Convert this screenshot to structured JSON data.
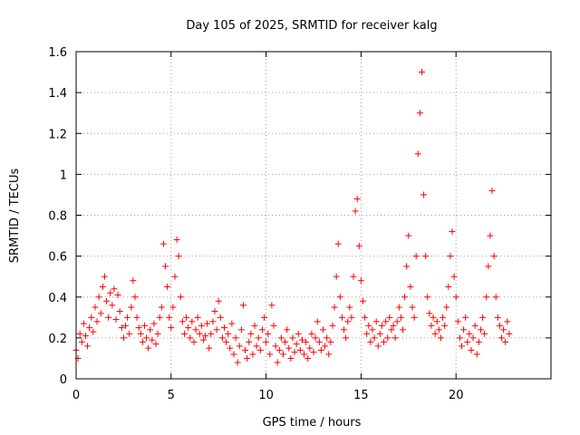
{
  "chart_data": {
    "type": "scatter",
    "title": "Day 105 of 2025, SRMTID for receiver kalg",
    "xlabel": "GPS time / hours",
    "ylabel": "SRMTID / TECUs",
    "xlim": [
      0,
      25
    ],
    "ylim": [
      0,
      1.6
    ],
    "xticks": [
      0,
      5,
      10,
      15,
      20
    ],
    "xtick_labels": [
      "0",
      "5",
      "10",
      "15",
      "20"
    ],
    "yticks": [
      0,
      0.2,
      0.4,
      0.6,
      0.8,
      1,
      1.2,
      1.4,
      1.6
    ],
    "ytick_labels": [
      "0",
      "0.2",
      "0.4",
      "0.6",
      "0.8",
      "1",
      "1.2",
      "1.4",
      "1.6"
    ],
    "grid": true,
    "marker": "+",
    "marker_color": "#ff0000",
    "series": [
      {
        "name": "SRMTID",
        "points": [
          [
            0.0,
            0.14
          ],
          [
            0.1,
            0.1
          ],
          [
            0.2,
            0.22
          ],
          [
            0.3,
            0.18
          ],
          [
            0.4,
            0.27
          ],
          [
            0.5,
            0.21
          ],
          [
            0.6,
            0.16
          ],
          [
            0.7,
            0.25
          ],
          [
            0.8,
            0.3
          ],
          [
            0.9,
            0.23
          ],
          [
            1.0,
            0.35
          ],
          [
            1.1,
            0.28
          ],
          [
            1.2,
            0.4
          ],
          [
            1.3,
            0.32
          ],
          [
            1.4,
            0.45
          ],
          [
            1.5,
            0.5
          ],
          [
            1.6,
            0.38
          ],
          [
            1.7,
            0.3
          ],
          [
            1.8,
            0.42
          ],
          [
            1.9,
            0.36
          ],
          [
            2.0,
            0.44
          ],
          [
            2.1,
            0.29
          ],
          [
            2.2,
            0.41
          ],
          [
            2.3,
            0.33
          ],
          [
            2.4,
            0.25
          ],
          [
            2.5,
            0.2
          ],
          [
            2.6,
            0.26
          ],
          [
            2.7,
            0.3
          ],
          [
            2.8,
            0.22
          ],
          [
            2.9,
            0.35
          ],
          [
            3.0,
            0.48
          ],
          [
            3.1,
            0.4
          ],
          [
            3.2,
            0.3
          ],
          [
            3.3,
            0.25
          ],
          [
            3.4,
            0.22
          ],
          [
            3.5,
            0.18
          ],
          [
            3.6,
            0.26
          ],
          [
            3.7,
            0.2
          ],
          [
            3.8,
            0.15
          ],
          [
            3.9,
            0.24
          ],
          [
            4.0,
            0.19
          ],
          [
            4.1,
            0.27
          ],
          [
            4.2,
            0.17
          ],
          [
            4.3,
            0.22
          ],
          [
            4.4,
            0.3
          ],
          [
            4.5,
            0.35
          ],
          [
            4.6,
            0.66
          ],
          [
            4.7,
            0.55
          ],
          [
            4.8,
            0.45
          ],
          [
            4.9,
            0.3
          ],
          [
            5.0,
            0.25
          ],
          [
            5.1,
            0.35
          ],
          [
            5.2,
            0.5
          ],
          [
            5.3,
            0.68
          ],
          [
            5.4,
            0.6
          ],
          [
            5.5,
            0.4
          ],
          [
            5.6,
            0.28
          ],
          [
            5.7,
            0.22
          ],
          [
            5.8,
            0.3
          ],
          [
            5.9,
            0.25
          ],
          [
            6.0,
            0.2
          ],
          [
            6.1,
            0.28
          ],
          [
            6.2,
            0.18
          ],
          [
            6.3,
            0.24
          ],
          [
            6.4,
            0.3
          ],
          [
            6.5,
            0.22
          ],
          [
            6.6,
            0.26
          ],
          [
            6.7,
            0.19
          ],
          [
            6.8,
            0.21
          ],
          [
            6.9,
            0.27
          ],
          [
            7.0,
            0.15
          ],
          [
            7.1,
            0.22
          ],
          [
            7.2,
            0.28
          ],
          [
            7.3,
            0.33
          ],
          [
            7.4,
            0.24
          ],
          [
            7.5,
            0.38
          ],
          [
            7.6,
            0.3
          ],
          [
            7.7,
            0.2
          ],
          [
            7.8,
            0.25
          ],
          [
            7.9,
            0.18
          ],
          [
            8.0,
            0.22
          ],
          [
            8.1,
            0.15
          ],
          [
            8.2,
            0.27
          ],
          [
            8.3,
            0.12
          ],
          [
            8.4,
            0.2
          ],
          [
            8.5,
            0.08
          ],
          [
            8.6,
            0.16
          ],
          [
            8.7,
            0.24
          ],
          [
            8.8,
            0.36
          ],
          [
            8.9,
            0.14
          ],
          [
            9.0,
            0.1
          ],
          [
            9.1,
            0.18
          ],
          [
            9.2,
            0.22
          ],
          [
            9.3,
            0.12
          ],
          [
            9.4,
            0.26
          ],
          [
            9.5,
            0.16
          ],
          [
            9.6,
            0.2
          ],
          [
            9.7,
            0.14
          ],
          [
            9.8,
            0.24
          ],
          [
            9.9,
            0.3
          ],
          [
            10.0,
            0.18
          ],
          [
            10.1,
            0.22
          ],
          [
            10.2,
            0.12
          ],
          [
            10.3,
            0.36
          ],
          [
            10.4,
            0.26
          ],
          [
            10.5,
            0.16
          ],
          [
            10.6,
            0.08
          ],
          [
            10.7,
            0.14
          ],
          [
            10.8,
            0.2
          ],
          [
            10.9,
            0.12
          ],
          [
            11.0,
            0.18
          ],
          [
            11.1,
            0.24
          ],
          [
            11.2,
            0.15
          ],
          [
            11.3,
            0.1
          ],
          [
            11.4,
            0.2
          ],
          [
            11.5,
            0.13
          ],
          [
            11.6,
            0.17
          ],
          [
            11.7,
            0.22
          ],
          [
            11.8,
            0.14
          ],
          [
            11.9,
            0.19
          ],
          [
            12.0,
            0.12
          ],
          [
            12.1,
            0.18
          ],
          [
            12.2,
            0.1
          ],
          [
            12.3,
            0.15
          ],
          [
            12.4,
            0.22
          ],
          [
            12.5,
            0.13
          ],
          [
            12.6,
            0.2
          ],
          [
            12.7,
            0.28
          ],
          [
            12.8,
            0.18
          ],
          [
            12.9,
            0.14
          ],
          [
            13.0,
            0.24
          ],
          [
            13.1,
            0.16
          ],
          [
            13.2,
            0.2
          ],
          [
            13.3,
            0.12
          ],
          [
            13.4,
            0.18
          ],
          [
            13.5,
            0.26
          ],
          [
            13.6,
            0.35
          ],
          [
            13.7,
            0.5
          ],
          [
            13.8,
            0.66
          ],
          [
            13.9,
            0.4
          ],
          [
            14.0,
            0.3
          ],
          [
            14.1,
            0.24
          ],
          [
            14.2,
            0.2
          ],
          [
            14.3,
            0.28
          ],
          [
            14.4,
            0.35
          ],
          [
            14.5,
            0.3
          ],
          [
            14.6,
            0.5
          ],
          [
            14.7,
            0.82
          ],
          [
            14.8,
            0.88
          ],
          [
            14.9,
            0.65
          ],
          [
            15.0,
            0.48
          ],
          [
            15.1,
            0.38
          ],
          [
            15.2,
            0.3
          ],
          [
            15.3,
            0.22
          ],
          [
            15.4,
            0.26
          ],
          [
            15.5,
            0.18
          ],
          [
            15.6,
            0.24
          ],
          [
            15.7,
            0.2
          ],
          [
            15.8,
            0.28
          ],
          [
            15.9,
            0.16
          ],
          [
            16.0,
            0.22
          ],
          [
            16.1,
            0.26
          ],
          [
            16.2,
            0.18
          ],
          [
            16.3,
            0.28
          ],
          [
            16.4,
            0.2
          ],
          [
            16.5,
            0.3
          ],
          [
            16.6,
            0.24
          ],
          [
            16.7,
            0.26
          ],
          [
            16.8,
            0.2
          ],
          [
            16.9,
            0.28
          ],
          [
            17.0,
            0.35
          ],
          [
            17.1,
            0.3
          ],
          [
            17.2,
            0.24
          ],
          [
            17.3,
            0.4
          ],
          [
            17.4,
            0.55
          ],
          [
            17.5,
            0.7
          ],
          [
            17.6,
            0.45
          ],
          [
            17.7,
            0.35
          ],
          [
            17.8,
            0.3
          ],
          [
            17.9,
            0.6
          ],
          [
            18.0,
            1.1
          ],
          [
            18.1,
            1.3
          ],
          [
            18.2,
            1.5
          ],
          [
            18.3,
            0.9
          ],
          [
            18.4,
            0.6
          ],
          [
            18.5,
            0.4
          ],
          [
            18.6,
            0.32
          ],
          [
            18.7,
            0.26
          ],
          [
            18.8,
            0.3
          ],
          [
            18.9,
            0.22
          ],
          [
            19.0,
            0.28
          ],
          [
            19.1,
            0.24
          ],
          [
            19.2,
            0.2
          ],
          [
            19.3,
            0.3
          ],
          [
            19.4,
            0.26
          ],
          [
            19.5,
            0.35
          ],
          [
            19.6,
            0.45
          ],
          [
            19.7,
            0.6
          ],
          [
            19.8,
            0.72
          ],
          [
            19.9,
            0.5
          ],
          [
            20.0,
            0.4
          ],
          [
            20.1,
            0.28
          ],
          [
            20.2,
            0.2
          ],
          [
            20.3,
            0.16
          ],
          [
            20.4,
            0.24
          ],
          [
            20.5,
            0.3
          ],
          [
            20.6,
            0.18
          ],
          [
            20.7,
            0.22
          ],
          [
            20.8,
            0.14
          ],
          [
            20.9,
            0.2
          ],
          [
            21.0,
            0.26
          ],
          [
            21.1,
            0.12
          ],
          [
            21.2,
            0.18
          ],
          [
            21.3,
            0.24
          ],
          [
            21.4,
            0.3
          ],
          [
            21.5,
            0.22
          ],
          [
            21.6,
            0.4
          ],
          [
            21.7,
            0.55
          ],
          [
            21.8,
            0.7
          ],
          [
            21.9,
            0.92
          ],
          [
            22.0,
            0.6
          ],
          [
            22.1,
            0.4
          ],
          [
            22.2,
            0.3
          ],
          [
            22.3,
            0.26
          ],
          [
            22.4,
            0.2
          ],
          [
            22.5,
            0.24
          ],
          [
            22.6,
            0.18
          ],
          [
            22.7,
            0.28
          ],
          [
            22.8,
            0.22
          ]
        ]
      }
    ]
  }
}
